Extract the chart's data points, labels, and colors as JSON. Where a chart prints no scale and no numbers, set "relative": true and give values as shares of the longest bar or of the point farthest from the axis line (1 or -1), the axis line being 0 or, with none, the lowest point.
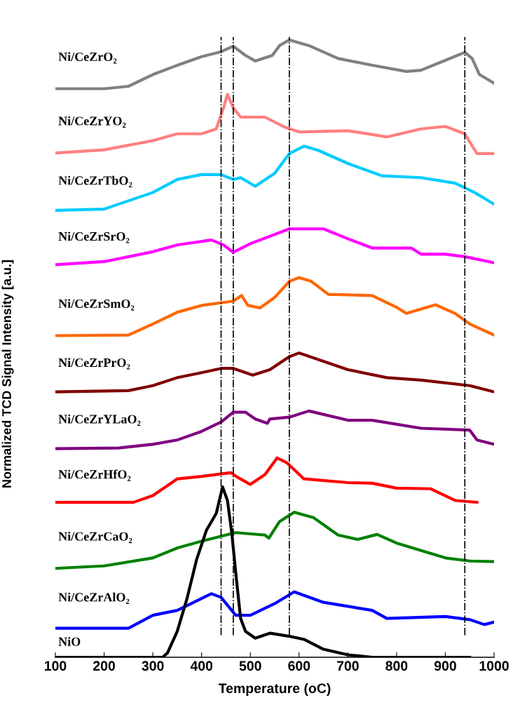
{
  "chart_data": {
    "type": "line",
    "xlabel": "Temperature (oC)",
    "ylabel": "Normalized TCD Signal Intensity [a.u.]",
    "relative": true,
    "xlim": [
      100,
      1000
    ],
    "xticks": [
      100,
      200,
      300,
      400,
      500,
      600,
      700,
      800,
      900,
      1000
    ],
    "tick_labels": "x",
    "grid": false,
    "legend": false,
    "marker": "none",
    "line_style": "solid",
    "ref_lines": [
      {
        "axis": "x",
        "value": 440,
        "color": "#000000",
        "line_style": "dashdot"
      },
      {
        "axis": "x",
        "value": 465,
        "color": "#000000",
        "line_style": "dashdot"
      },
      {
        "axis": "x",
        "value": 580,
        "color": "#000000",
        "line_style": "dashdot"
      },
      {
        "axis": "x",
        "value": 940,
        "color": "#000000",
        "line_style": "dashdot"
      }
    ],
    "series": [
      {
        "name": "Ni/CeZrO₂",
        "color": "#808080",
        "x": [
          100,
          200,
          250,
          300,
          350,
          400,
          440,
          465,
          490,
          510,
          545,
          560,
          580,
          620,
          680,
          750,
          820,
          850,
          900,
          940,
          955,
          970,
          1000
        ],
        "values": [
          0.921,
          0.921,
          0.925,
          0.944,
          0.959,
          0.973,
          0.981,
          0.99,
          0.975,
          0.966,
          0.975,
          0.991,
          1.0,
          0.991,
          0.97,
          0.959,
          0.949,
          0.951,
          0.967,
          0.98,
          0.97,
          0.944,
          0.93
        ]
      },
      {
        "name": "Ni/CeZrYO₂",
        "color": "#ff8080",
        "x": [
          100,
          200,
          300,
          350,
          400,
          430,
          445,
          453,
          465,
          480,
          530,
          570,
          600,
          700,
          780,
          850,
          900,
          940,
          960,
          965,
          1000
        ],
        "values": [
          0.817,
          0.822,
          0.837,
          0.848,
          0.848,
          0.856,
          0.89,
          0.912,
          0.89,
          0.875,
          0.875,
          0.859,
          0.851,
          0.853,
          0.843,
          0.856,
          0.86,
          0.848,
          0.822,
          0.816,
          0.816
        ]
      },
      {
        "name": "Ni/CeZrTbO₂",
        "color": "#00ccff",
        "x": [
          100,
          200,
          300,
          350,
          400,
          440,
          465,
          480,
          510,
          550,
          580,
          610,
          640,
          700,
          770,
          850,
          920,
          960,
          1000
        ],
        "values": [
          0.724,
          0.726,
          0.753,
          0.774,
          0.782,
          0.782,
          0.774,
          0.777,
          0.763,
          0.784,
          0.816,
          0.828,
          0.821,
          0.8,
          0.78,
          0.777,
          0.768,
          0.753,
          0.734
        ]
      },
      {
        "name": "Ni/CeZrSrO₂",
        "color": "#ff00ff",
        "x": [
          100,
          200,
          300,
          350,
          420,
          445,
          465,
          500,
          580,
          650,
          700,
          750,
          830,
          850,
          900,
          940,
          1000
        ],
        "values": [
          0.636,
          0.641,
          0.657,
          0.668,
          0.676,
          0.668,
          0.656,
          0.67,
          0.694,
          0.694,
          0.678,
          0.663,
          0.663,
          0.653,
          0.653,
          0.649,
          0.639
        ]
      },
      {
        "name": "Ni/CeZrSmO₂",
        "color": "#ff6600",
        "x": [
          100,
          250,
          300,
          350,
          400,
          465,
          482,
          495,
          520,
          550,
          580,
          600,
          625,
          660,
          750,
          800,
          820,
          880,
          920,
          950,
          1000
        ],
        "values": [
          0.521,
          0.522,
          0.54,
          0.559,
          0.57,
          0.577,
          0.586,
          0.57,
          0.566,
          0.583,
          0.609,
          0.615,
          0.609,
          0.588,
          0.586,
          0.567,
          0.557,
          0.571,
          0.557,
          0.54,
          0.522
        ]
      },
      {
        "name": "Ni/CeZrPrO₂",
        "color": "#800000",
        "x": [
          100,
          250,
          300,
          350,
          400,
          440,
          465,
          505,
          540,
          580,
          600,
          700,
          780,
          850,
          950,
          1000
        ],
        "values": [
          0.43,
          0.432,
          0.44,
          0.453,
          0.461,
          0.468,
          0.468,
          0.457,
          0.466,
          0.487,
          0.493,
          0.466,
          0.453,
          0.449,
          0.44,
          0.43
        ]
      },
      {
        "name": "Ni/CeZrYLaO₂",
        "color": "#800080",
        "x": [
          100,
          230,
          300,
          350,
          400,
          440,
          465,
          490,
          510,
          535,
          540,
          580,
          620,
          700,
          750,
          850,
          950,
          965,
          1000
        ],
        "values": [
          0.338,
          0.339,
          0.345,
          0.352,
          0.366,
          0.381,
          0.397,
          0.397,
          0.386,
          0.379,
          0.386,
          0.389,
          0.399,
          0.384,
          0.384,
          0.371,
          0.368,
          0.352,
          0.345
        ]
      },
      {
        "name": "Ni/CeZrHfO₂",
        "color": "#ff0000",
        "x": [
          100,
          260,
          300,
          350,
          400,
          460,
          475,
          500,
          530,
          555,
          575,
          610,
          700,
          750,
          800,
          870,
          920,
          965
        ],
        "values": [
          0.251,
          0.251,
          0.262,
          0.289,
          0.293,
          0.299,
          0.291,
          0.28,
          0.296,
          0.323,
          0.315,
          0.289,
          0.283,
          0.282,
          0.274,
          0.273,
          0.254,
          0.251
        ]
      },
      {
        "name": "Ni/CeZrCaO₂",
        "color": "#008000",
        "x": [
          100,
          200,
          300,
          350,
          400,
          470,
          530,
          538,
          560,
          590,
          630,
          680,
          720,
          760,
          800,
          900,
          950,
          1000
        ],
        "values": [
          0.144,
          0.148,
          0.161,
          0.177,
          0.188,
          0.202,
          0.198,
          0.193,
          0.22,
          0.235,
          0.226,
          0.198,
          0.191,
          0.199,
          0.185,
          0.161,
          0.156,
          0.155
        ]
      },
      {
        "name": "Ni/CeZrAlO₂",
        "color": "#0000ff",
        "x": [
          100,
          250,
          300,
          350,
          420,
          440,
          470,
          500,
          550,
          590,
          650,
          750,
          780,
          900,
          950,
          980,
          1000
        ],
        "values": [
          0.047,
          0.047,
          0.068,
          0.076,
          0.103,
          0.097,
          0.068,
          0.068,
          0.087,
          0.106,
          0.089,
          0.076,
          0.063,
          0.066,
          0.061,
          0.053,
          0.057
        ]
      },
      {
        "name": "NiO",
        "color": "#000000",
        "x": [
          100,
          320,
          330,
          350,
          370,
          390,
          410,
          430,
          443,
          453,
          462,
          470,
          480,
          490,
          510,
          540,
          580,
          610,
          650,
          700,
          750,
          950
        ],
        "values": [
          0.0,
          0.0,
          0.007,
          0.042,
          0.095,
          0.159,
          0.206,
          0.233,
          0.276,
          0.254,
          0.201,
          0.137,
          0.063,
          0.042,
          0.031,
          0.039,
          0.034,
          0.029,
          0.013,
          0.004,
          0.0,
          0.0
        ]
      }
    ]
  }
}
